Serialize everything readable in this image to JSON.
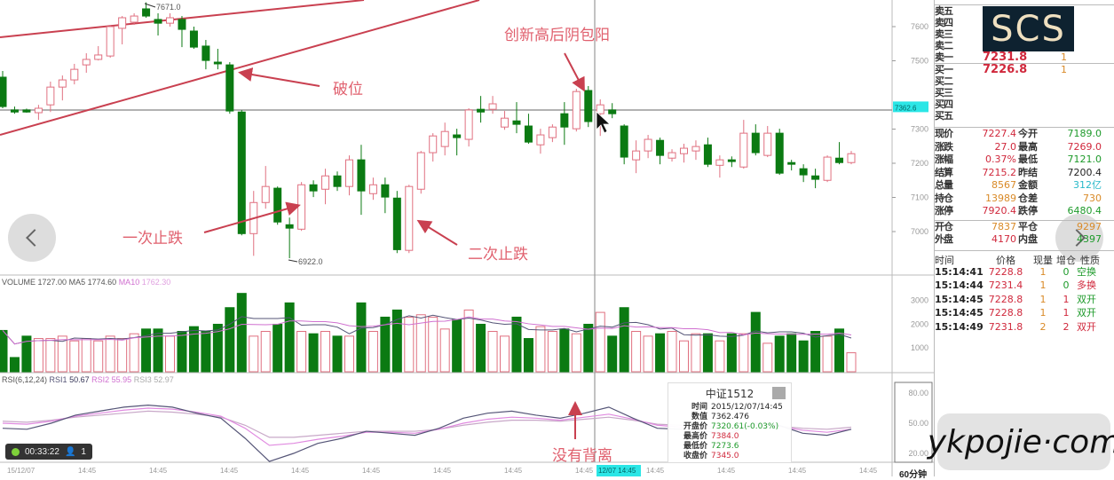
{
  "colors": {
    "up": "#e07080",
    "down": "#0b7a12",
    "trendline": "#c94050",
    "annotation": "#e0606e",
    "crosshair": "#999999",
    "rsi1": "#555577",
    "rsi2": "#e08ae0",
    "rsi3": "#c8a8c8",
    "ma5": "#555577",
    "ma10": "#d070d0",
    "price_tag": "#2be6e6"
  },
  "price_axis": {
    "ticks": [
      "7600",
      "7500",
      "7400",
      "7300",
      "7200",
      "7100",
      "7000"
    ],
    "current_tag": "7362.6"
  },
  "volume_axis": {
    "ticks": [
      "3000",
      "2000",
      "1000"
    ]
  },
  "rsi_axis": {
    "ticks": [
      "80.00",
      "50.00",
      "20.00"
    ]
  },
  "period_label": "60分钟",
  "time_axis": {
    "labels": [
      "15/12/07",
      "14:45",
      "14:45",
      "14:45",
      "14:45",
      "14:45",
      "14:45",
      "14:45",
      "14:45",
      "14:45",
      "14:45",
      "14:45",
      "14:45"
    ],
    "crosshair_label": "12/07 14:45"
  },
  "markers": {
    "high": "7671.0",
    "low": "6922.0"
  },
  "annotations": {
    "break": "破位",
    "first_stop": "一次止跌",
    "second_stop": "二次止跌",
    "engulf": "创新高后阴包阳",
    "no_divergence": "没有背离"
  },
  "volume_header": {
    "name": "VOLUME",
    "value": "1727.00",
    "ma5_label": "MA5",
    "ma5": "1774.60",
    "ma10_label": "MA10",
    "ma10": "1762.30"
  },
  "rsi_header": {
    "name": "RSI(6,12,24)",
    "rsi1_label": "RSI1",
    "rsi1": "50.67",
    "rsi2_label": "RSI2",
    "rsi2": "55.95",
    "rsi3_label": "RSI3",
    "rsi3": "52.97"
  },
  "chart_data": {
    "type": "candlestick",
    "ylim": [
      6900,
      7680
    ],
    "candles_ohlc": [
      [
        7452,
        7470,
        7361,
        7366
      ],
      [
        7356,
        7366,
        7345,
        7350
      ],
      [
        7356,
        7360,
        7348,
        7350
      ],
      [
        7348,
        7371,
        7327,
        7361
      ],
      [
        7371,
        7439,
        7350,
        7423
      ],
      [
        7423,
        7457,
        7384,
        7444
      ],
      [
        7444,
        7491,
        7431,
        7475
      ],
      [
        7488,
        7522,
        7465,
        7504
      ],
      [
        7504,
        7543,
        7501,
        7517
      ],
      [
        7514,
        7605,
        7509,
        7600
      ],
      [
        7595,
        7631,
        7548,
        7626
      ],
      [
        7613,
        7639,
        7605,
        7631
      ],
      [
        7652,
        7671,
        7626,
        7631
      ],
      [
        7621,
        7639,
        7574,
        7610
      ],
      [
        7610,
        7639,
        7600,
        7626
      ],
      [
        7621,
        7631,
        7540,
        7592
      ],
      [
        7587,
        7600,
        7535,
        7540
      ],
      [
        7543,
        7561,
        7475,
        7501
      ],
      [
        7496,
        7535,
        7475,
        7491
      ],
      [
        7488,
        7496,
        7345,
        7353
      ],
      [
        7350,
        7356,
        6989,
        6994
      ],
      [
        6994,
        7119,
        6929,
        7085
      ],
      [
        7085,
        7192,
        7067,
        7132
      ],
      [
        7127,
        7132,
        7020,
        7028
      ],
      [
        7020,
        7041,
        6922,
        7010
      ],
      [
        7007,
        7145,
        7002,
        7137
      ],
      [
        7137,
        7150,
        7101,
        7119
      ],
      [
        7124,
        7184,
        7080,
        7163
      ],
      [
        7163,
        7176,
        7119,
        7132
      ],
      [
        7132,
        7223,
        7106,
        7210
      ],
      [
        7210,
        7254,
        7049,
        7119
      ],
      [
        7111,
        7158,
        7093,
        7137
      ],
      [
        7137,
        7158,
        7054,
        7101
      ],
      [
        7098,
        7119,
        6937,
        6947
      ],
      [
        6945,
        7137,
        6937,
        7132
      ],
      [
        7124,
        7236,
        7111,
        7231
      ],
      [
        7231,
        7288,
        7205,
        7280
      ],
      [
        7249,
        7319,
        7223,
        7293
      ],
      [
        7283,
        7301,
        7223,
        7275
      ],
      [
        7270,
        7361,
        7249,
        7356
      ],
      [
        7358,
        7397,
        7319,
        7350
      ],
      [
        7358,
        7397,
        7345,
        7374
      ],
      [
        7306,
        7353,
        7298,
        7332
      ],
      [
        7324,
        7379,
        7288,
        7314
      ],
      [
        7309,
        7345,
        7257,
        7262
      ],
      [
        7254,
        7301,
        7228,
        7283
      ],
      [
        7275,
        7314,
        7262,
        7306
      ],
      [
        7345,
        7379,
        7254,
        7306
      ],
      [
        7301,
        7418,
        7293,
        7410
      ],
      [
        7413,
        7426,
        7306,
        7322
      ],
      [
        7345,
        7387,
        7280,
        7371
      ],
      [
        7356,
        7376,
        7332,
        7345
      ],
      [
        7309,
        7314,
        7197,
        7218
      ],
      [
        7210,
        7267,
        7171,
        7236
      ],
      [
        7236,
        7283,
        7215,
        7270
      ],
      [
        7267,
        7275,
        7197,
        7223
      ],
      [
        7215,
        7241,
        7205,
        7231
      ],
      [
        7228,
        7257,
        7202,
        7244
      ],
      [
        7236,
        7267,
        7210,
        7249
      ],
      [
        7254,
        7275,
        7189,
        7197
      ],
      [
        7194,
        7223,
        7158,
        7210
      ],
      [
        7210,
        7220,
        7189,
        7205
      ],
      [
        7189,
        7327,
        7184,
        7288
      ],
      [
        7288,
        7314,
        7223,
        7231
      ],
      [
        7223,
        7309,
        7218,
        7288
      ],
      [
        7288,
        7301,
        7166,
        7171
      ],
      [
        7202,
        7210,
        7179,
        7197
      ],
      [
        7184,
        7197,
        7145,
        7166
      ],
      [
        7163,
        7184,
        7127,
        7153
      ],
      [
        7150,
        7223,
        7145,
        7218
      ],
      [
        7215,
        7262,
        7197,
        7202
      ],
      [
        7202,
        7236,
        7197,
        7228
      ]
    ],
    "volume": [
      1740,
      600,
      1500,
      1400,
      1400,
      1500,
      1300,
      1400,
      1300,
      1500,
      1400,
      1600,
      1800,
      1800,
      1500,
      1700,
      1900,
      1700,
      2000,
      2700,
      3300,
      1500,
      1700,
      2000,
      2900,
      1700,
      1600,
      1700,
      1500,
      1500,
      2900,
      1700,
      2300,
      2600,
      2300,
      2400,
      2300,
      1800,
      2200,
      2600,
      2000,
      1700,
      1500,
      2300,
      1400,
      1900,
      1700,
      1800,
      1600,
      2000,
      2500,
      1500,
      2700,
      1700,
      1500,
      1600,
      1700,
      1300,
      1600,
      1600,
      1300,
      1600,
      1600,
      2500,
      1200,
      1500,
      1600,
      1300,
      1700,
      1500,
      1800,
      800
    ],
    "volume_ylim": [
      0,
      3400
    ],
    "rsi1": [
      45,
      44,
      50,
      58,
      62,
      66,
      68,
      66,
      60,
      55,
      35,
      12,
      20,
      30,
      35,
      42,
      40,
      38,
      45,
      55,
      60,
      62,
      58,
      55,
      60,
      66,
      55,
      45,
      44,
      42,
      40,
      50,
      48,
      40,
      38,
      44
    ],
    "rsi2": [
      50,
      49,
      52,
      57,
      60,
      63,
      65,
      64,
      61,
      57,
      45,
      28,
      30,
      34,
      37,
      41,
      41,
      40,
      44,
      50,
      54,
      56,
      55,
      53,
      56,
      59,
      54,
      48,
      46,
      45,
      43,
      48,
      47,
      43,
      41,
      44
    ],
    "rsi3": [
      52,
      51,
      53,
      56,
      58,
      60,
      62,
      61,
      59,
      56,
      48,
      36,
      36,
      38,
      40,
      42,
      42,
      42,
      44,
      48,
      51,
      53,
      53,
      52,
      54,
      56,
      53,
      49,
      48,
      47,
      46,
      48,
      47,
      45,
      44,
      46
    ],
    "rsi_ylim": [
      0,
      100
    ]
  },
  "tooltip": {
    "title": "中证1512",
    "rows": [
      {
        "k": "时间",
        "v": "2015/12/07/14:45",
        "c": "blk"
      },
      {
        "k": "数值",
        "v": "7362.476",
        "c": "blk"
      },
      {
        "k": "开盘价",
        "v": "7320.61(-0.03%)",
        "c": "grn"
      },
      {
        "k": "最高价",
        "v": "7384.0",
        "c": "red"
      },
      {
        "k": "最低价",
        "v": "7273.6",
        "c": "grn"
      },
      {
        "k": "收盘价",
        "v": "7345.0",
        "c": "red"
      }
    ]
  },
  "recorder": {
    "time": "00:33:22",
    "viewers": "1"
  },
  "quote": {
    "asks": [
      {
        "k": "卖五",
        "v": ""
      },
      {
        "k": "卖四",
        "v": ""
      },
      {
        "k": "卖三",
        "v": ""
      },
      {
        "k": "卖二",
        "v": ""
      },
      {
        "k": "卖一",
        "v": "7231.8",
        "q": "1"
      }
    ],
    "bids": [
      {
        "k": "买一",
        "v": "7226.8",
        "q": "1"
      },
      {
        "k": "买二",
        "v": ""
      },
      {
        "k": "买三",
        "v": ""
      },
      {
        "k": "买四",
        "v": ""
      },
      {
        "k": "买五",
        "v": ""
      }
    ],
    "stats": [
      {
        "k1": "现价",
        "v1": "7227.4",
        "c1": "red",
        "k2": "今开",
        "v2": "7189.0",
        "c2": "grn"
      },
      {
        "k1": "涨跌",
        "v1": "27.0",
        "c1": "red",
        "k2": "最高",
        "v2": "7269.0",
        "c2": "red"
      },
      {
        "k1": "涨幅",
        "v1": "0.37%",
        "c1": "red",
        "k2": "最低",
        "v2": "7121.0",
        "c2": "grn"
      },
      {
        "k1": "结算",
        "v1": "7215.2",
        "c1": "red",
        "k2": "昨结",
        "v2": "7200.4",
        "c2": "blk"
      },
      {
        "k1": "总量",
        "v1": "8567",
        "c1": "org",
        "k2": "金额",
        "v2": "312亿",
        "c2": "cyn"
      },
      {
        "k1": "持仓",
        "v1": "13989",
        "c1": "org",
        "k2": "仓差",
        "v2": "730",
        "c2": "org"
      },
      {
        "k1": "涨停",
        "v1": "7920.4",
        "c1": "red",
        "k2": "跌停",
        "v2": "6480.4",
        "c2": "grn"
      }
    ],
    "orders": [
      {
        "k1": "开仓",
        "v1": "7837",
        "c1": "org",
        "k2": "平仓",
        "v2": "9297",
        "c2": "org"
      },
      {
        "k1": "外盘",
        "v1": "4170",
        "c1": "red",
        "k2": "内盘",
        "v2": "4397",
        "c2": "grn"
      }
    ],
    "trade_headers": [
      "时间",
      "价格",
      "现量",
      "增仓",
      "性质"
    ],
    "trades": [
      {
        "t": "15:14:41",
        "p": "7228.8",
        "q": "1",
        "z": "0",
        "n": "空换",
        "nc": "grn"
      },
      {
        "t": "15:14:44",
        "p": "7231.4",
        "q": "1",
        "z": "0",
        "n": "多换",
        "nc": "red"
      },
      {
        "t": "15:14:45",
        "p": "7228.8",
        "q": "1",
        "z": "1",
        "n": "双开",
        "nc": "grn"
      },
      {
        "t": "15:14:45",
        "p": "7228.8",
        "q": "1",
        "z": "1",
        "n": "双开",
        "nc": "grn"
      },
      {
        "t": "15:14:49",
        "p": "7231.8",
        "q": "2",
        "z": "2",
        "n": "双开",
        "nc": "red"
      }
    ]
  },
  "watermarks": {
    "logo": "SCS",
    "site": "ykpojie·com"
  },
  "nav": {
    "prev_icon": "chevron-left-icon",
    "next_icon": "chevron-right-icon"
  }
}
